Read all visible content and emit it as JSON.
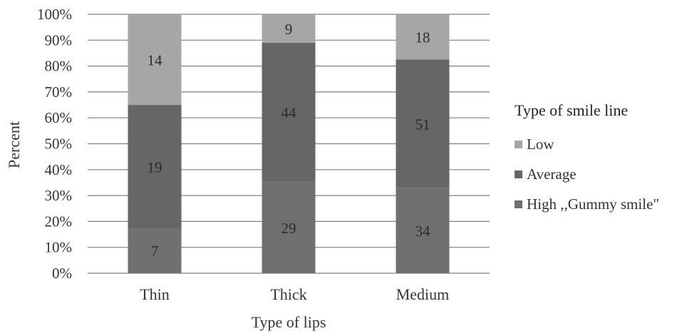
{
  "chart_data": {
    "type": "bar",
    "stacked": true,
    "normalized_percent": true,
    "title": "",
    "xlabel": "Type of lips",
    "ylabel": "Percent",
    "ylim": [
      0,
      100
    ],
    "y_ticks": [
      "0%",
      "10%",
      "20%",
      "30%",
      "40%",
      "50%",
      "60%",
      "70%",
      "80%",
      "90%",
      "100%"
    ],
    "grid": true,
    "legend_position": "right",
    "legend_title": "Type of smile line",
    "categories": [
      "Thin",
      "Thick",
      "Medium"
    ],
    "series": [
      {
        "name": "High ,,Gummy smile\"",
        "values": [
          7,
          29,
          34
        ],
        "color": "#707070"
      },
      {
        "name": "Average",
        "values": [
          19,
          44,
          51
        ],
        "color": "#666666"
      },
      {
        "name": "Low",
        "values": [
          14,
          9,
          18
        ],
        "color": "#a6a6a6"
      }
    ]
  }
}
